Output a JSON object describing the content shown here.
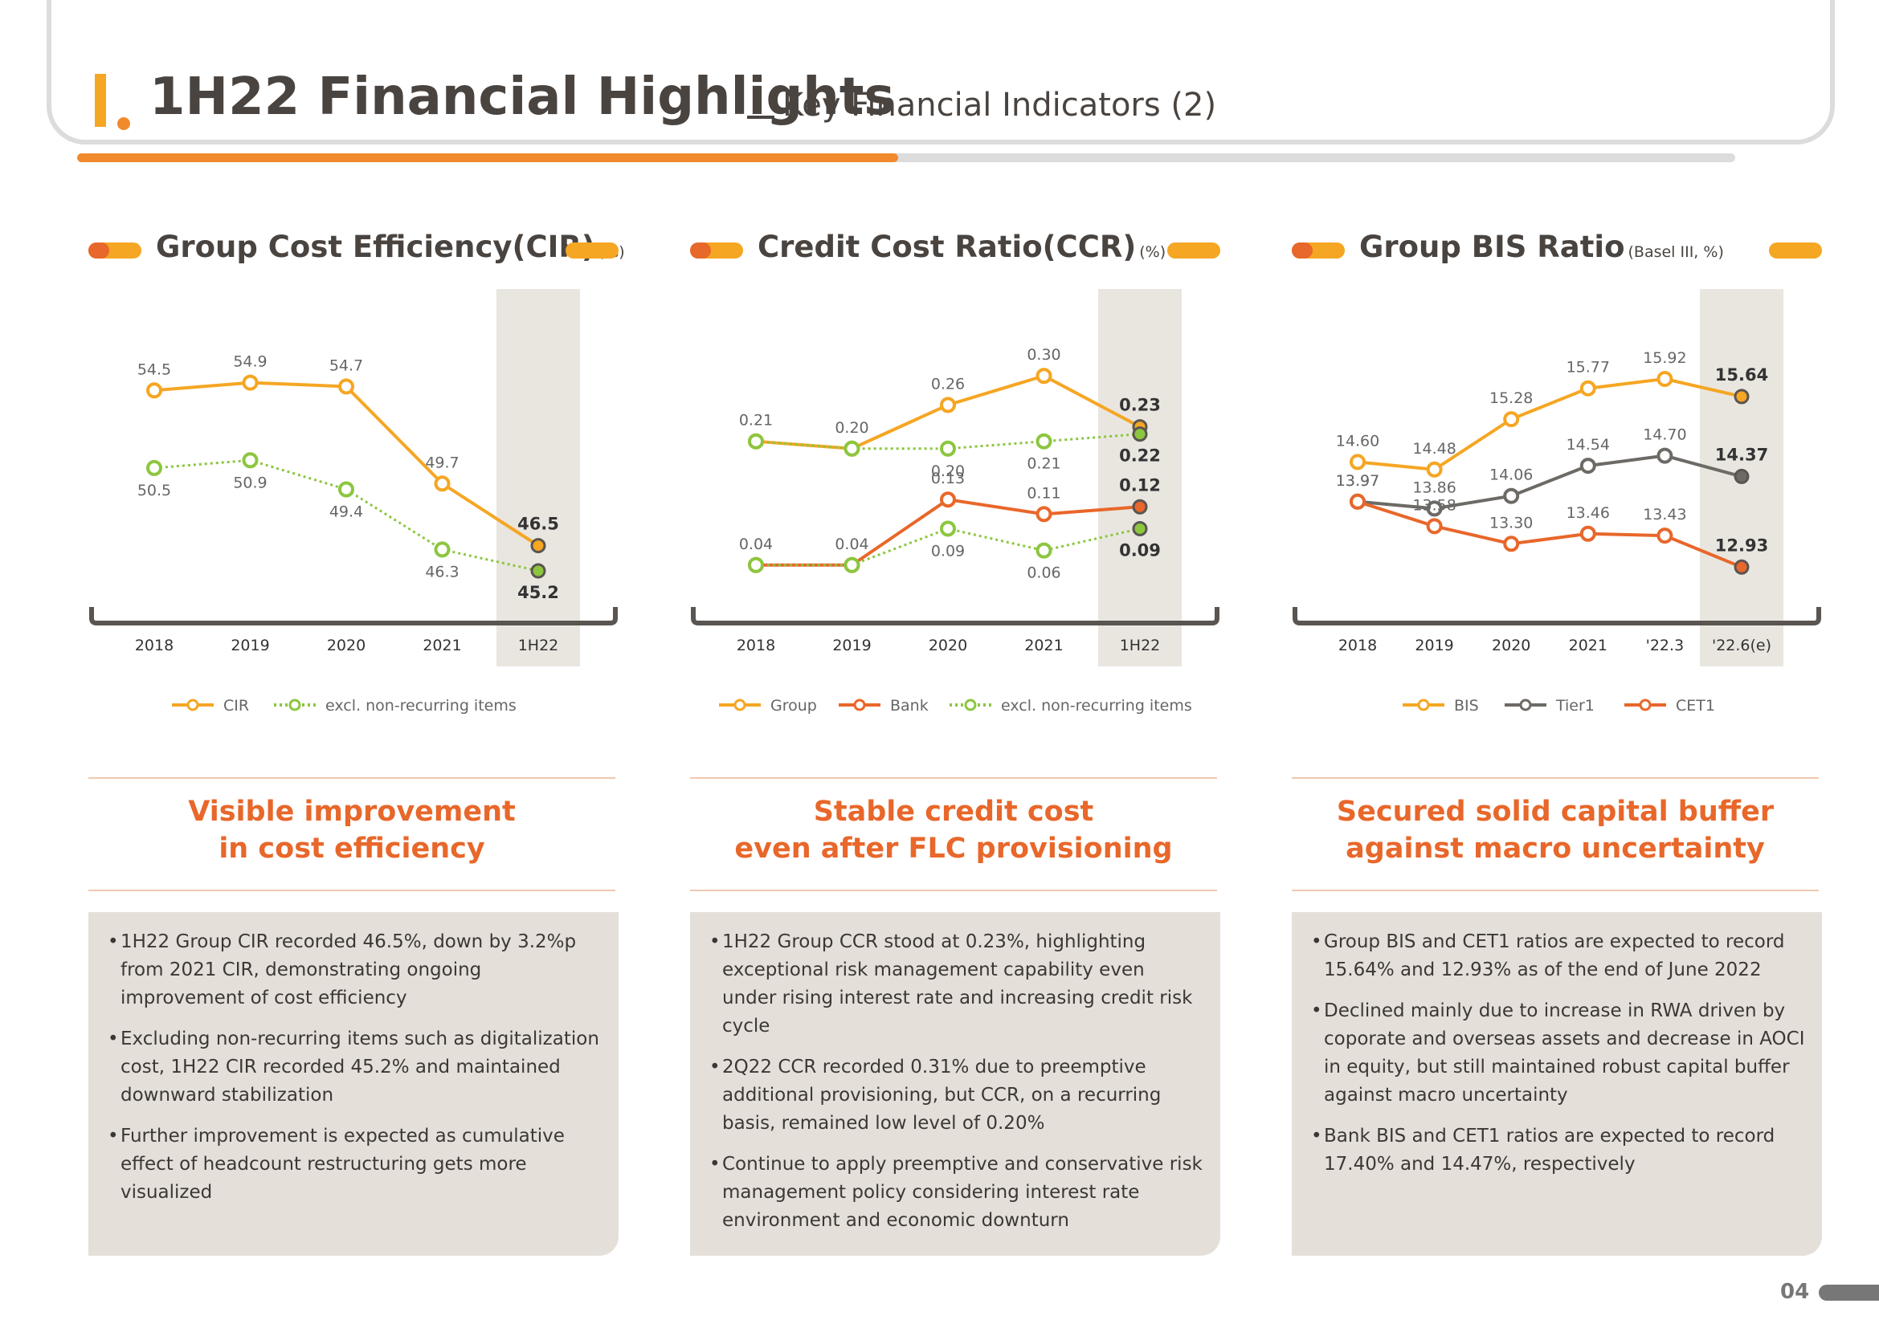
{
  "header": {
    "title": "1H22 Financial Highlights",
    "subtitle": "Key Financial Indicators (2)"
  },
  "panels": [
    {
      "title": "Group Cost Efficiency(CIR)",
      "unit": "(%)",
      "takeaway": [
        "Visible improvement",
        "in cost efficiency"
      ],
      "bullets": [
        "1H22 Group CIR recorded 46.5%, down by 3.2%p from 2021 CIR, demonstrating ongoing improvement of cost efficiency",
        "Excluding non-recurring items such as digitalization cost, 1H22 CIR recorded 45.2% and maintained downward stabilization",
        "Further improvement is expected as cumulative effect of headcount restructuring gets more visualized"
      ]
    },
    {
      "title": "Credit Cost Ratio(CCR)",
      "unit": "(%)",
      "takeaway": [
        "Stable credit cost",
        "even after FLC provisioning"
      ],
      "bullets": [
        "1H22 Group CCR stood at 0.23%, highlighting exceptional risk management capability even under rising interest rate and increasing credit risk cycle",
        "2Q22 CCR recorded 0.31% due to preemptive additional provisioning, but CCR, on a recurring basis, remained low level of 0.20%",
        "Continue to apply preemptive and conservative risk management policy considering interest rate environment and economic downturn"
      ]
    },
    {
      "title": "Group BIS Ratio",
      "unit": "(Basel III, %)",
      "takeaway": [
        "Secured solid capital buffer",
        "against macro uncertainty"
      ],
      "bullets": [
        "Group BIS and CET1 ratios are expected to record 15.64% and 12.93% as of the end of June 2022",
        "Declined mainly due to increase in RWA driven by coporate and overseas assets and decrease in AOCI in equity, but still maintained robust capital buffer against macro uncertainty",
        "Bank BIS and CET1 ratios are expected to record 17.40% and 14.47%, respectively"
      ]
    }
  ],
  "colors": {
    "orange": "#f5a623",
    "red": "#e8672a",
    "green": "#8cc63f",
    "grey": "#6d6a66",
    "highlight": "#e9e6e0"
  },
  "chart_data": [
    {
      "type": "line",
      "categories": [
        "2018",
        "2019",
        "2020",
        "2021",
        "1H22"
      ],
      "ylim": [
        44,
        56
      ],
      "series": [
        {
          "name": "CIR",
          "values": [
            54.5,
            54.9,
            54.7,
            49.7,
            46.5
          ],
          "labels": [
            "54.5",
            "54.9",
            "54.7",
            "49.7",
            "46.5"
          ],
          "color": "#f5a623",
          "dotted": false,
          "label_pos": "above"
        },
        {
          "name": "excl. non-recurring items",
          "values": [
            50.5,
            50.9,
            49.4,
            46.3,
            45.2
          ],
          "labels": [
            "50.5",
            "50.9",
            "49.4",
            "46.3",
            "45.2"
          ],
          "color": "#8cc63f",
          "dotted": true,
          "label_pos": "below"
        }
      ]
    },
    {
      "type": "line",
      "categories": [
        "2018",
        "2019",
        "2020",
        "2021",
        "1H22"
      ],
      "ylim": [
        0.0,
        0.32
      ],
      "series": [
        {
          "name": "Group",
          "values": [
            0.21,
            0.2,
            0.26,
            0.3,
            0.23
          ],
          "labels": [
            "0.21",
            "0.20",
            "0.26",
            "0.30",
            "0.23"
          ],
          "color": "#f5a623",
          "dotted": false,
          "label_pos": "above"
        },
        {
          "name": "Group excl. non-recurring items",
          "values": [
            0.21,
            0.2,
            0.2,
            0.21,
            0.22
          ],
          "labels": [
            "",
            "",
            "0.20",
            "0.21",
            "0.22"
          ],
          "color": "#8cc63f",
          "dotted": true,
          "label_pos": "below"
        },
        {
          "name": "Bank",
          "values": [
            0.04,
            0.04,
            0.13,
            0.11,
            0.12
          ],
          "labels": [
            "0.04",
            "0.04",
            "0.13",
            "0.11",
            "0.12"
          ],
          "color": "#e8672a",
          "dotted": false,
          "label_pos": "above"
        },
        {
          "name": "excl. non-recurring items",
          "values": [
            0.04,
            0.04,
            0.09,
            0.06,
            0.09
          ],
          "labels": [
            "",
            "",
            "0.09",
            "0.06",
            "0.09"
          ],
          "color": "#8cc63f",
          "dotted": true,
          "label_pos": "below"
        }
      ],
      "legend": [
        "Group",
        "Bank",
        "excl. non-recurring items"
      ]
    },
    {
      "type": "line",
      "categories": [
        "2018",
        "2019",
        "2020",
        "2021",
        "'22.3",
        "'22.6(e)"
      ],
      "ylim": [
        12.5,
        16.2
      ],
      "series": [
        {
          "name": "BIS",
          "values": [
            14.6,
            14.48,
            15.28,
            15.77,
            15.92,
            15.64
          ],
          "labels": [
            "14.60",
            "14.48",
            "15.28",
            "15.77",
            "15.92",
            "15.64"
          ],
          "color": "#f5a623",
          "dotted": false,
          "label_pos": "above"
        },
        {
          "name": "Tier1",
          "values": [
            13.97,
            13.86,
            14.06,
            14.54,
            14.7,
            14.37
          ],
          "labels": [
            "13.97",
            "13.86",
            "14.06",
            "14.54",
            "14.70",
            "14.37"
          ],
          "color": "#6d6a66",
          "dotted": false,
          "label_pos": "above"
        },
        {
          "name": "CET1",
          "values": [
            13.97,
            13.58,
            13.3,
            13.46,
            13.43,
            12.93
          ],
          "labels": [
            "13.97",
            "13.58",
            "13.30",
            "13.46",
            "13.43",
            "12.93"
          ],
          "color": "#e8672a",
          "dotted": false,
          "label_pos": "above"
        }
      ]
    }
  ],
  "legends": [
    [
      {
        "name": "CIR",
        "color": "#f5a623",
        "dotted": false
      },
      {
        "name": "excl. non-recurring items",
        "color": "#8cc63f",
        "dotted": true
      }
    ],
    [
      {
        "name": "Group",
        "color": "#f5a623",
        "dotted": false
      },
      {
        "name": "Bank",
        "color": "#e8672a",
        "dotted": false
      },
      {
        "name": "excl. non-recurring items",
        "color": "#8cc63f",
        "dotted": true
      }
    ],
    [
      {
        "name": "BIS",
        "color": "#f5a623",
        "dotted": false
      },
      {
        "name": "Tier1",
        "color": "#6d6a66",
        "dotted": false
      },
      {
        "name": "CET1",
        "color": "#e8672a",
        "dotted": false
      }
    ]
  ],
  "page_number": "04"
}
